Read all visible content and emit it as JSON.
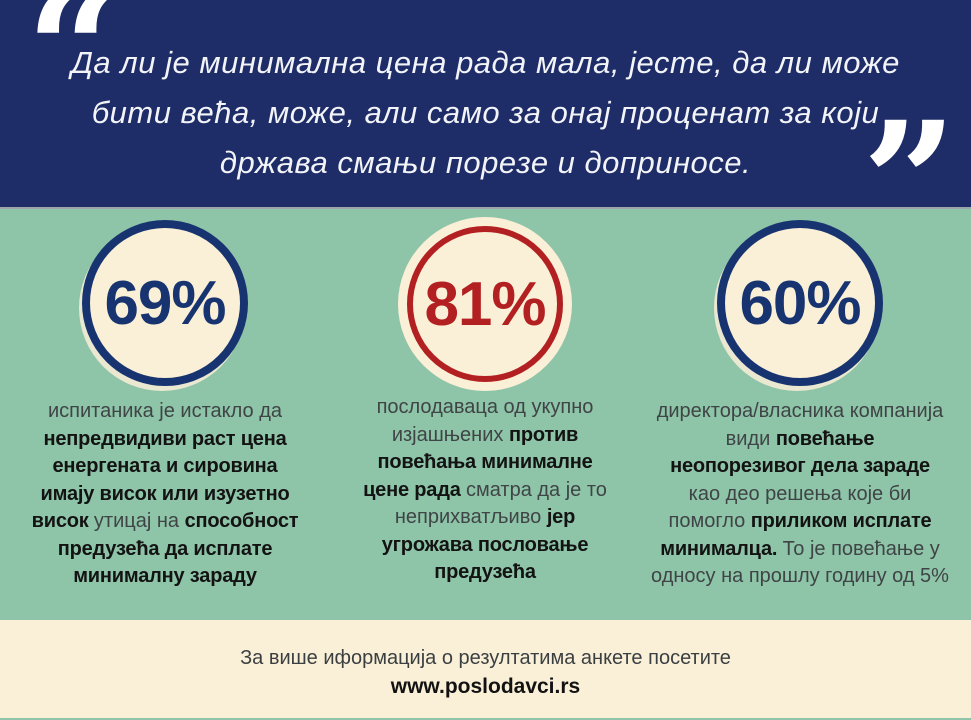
{
  "quote": {
    "text": "Да ли је минимална цена рада мала, јесте, да ли може\nбити већа, може, али само за онај проценат за који\nдржава смањи порезе и доприносе.",
    "open_mark": "“",
    "close_mark": "”"
  },
  "stats": [
    {
      "value": "69%",
      "accent": "#183470",
      "lines": [
        [
          {
            "t": "испитаника је истакло да",
            "b": 0
          }
        ],
        [
          {
            "t": "непредвидиви раст цена",
            "b": 1
          }
        ],
        [
          {
            "t": "енергената и сировина",
            "b": 1
          }
        ],
        [
          {
            "t": "имају висок или изузетно",
            "b": 1
          }
        ],
        [
          {
            "t": "висок ",
            "b": 1
          },
          {
            "t": "утицај на ",
            "b": 0
          },
          {
            "t": "способност",
            "b": 1
          }
        ],
        [
          {
            "t": "предузећа да исплате",
            "b": 1
          }
        ],
        [
          {
            "t": "минималну зараду",
            "b": 1
          }
        ]
      ]
    },
    {
      "value": "81%",
      "accent": "#b22021",
      "lines": [
        [
          {
            "t": "послодаваца од укупно",
            "b": 0
          }
        ],
        [
          {
            "t": "изјашњених ",
            "b": 0
          },
          {
            "t": "против",
            "b": 1
          }
        ],
        [
          {
            "t": "повећања минималне",
            "b": 1
          }
        ],
        [
          {
            "t": "цене рада ",
            "b": 1
          },
          {
            "t": "сматра да је то",
            "b": 0
          }
        ],
        [
          {
            "t": "неприхватљиво ",
            "b": 0
          },
          {
            "t": "јер",
            "b": 1
          }
        ],
        [
          {
            "t": "угрожава пословање",
            "b": 1
          }
        ],
        [
          {
            "t": "предузећа",
            "b": 1
          }
        ]
      ]
    },
    {
      "value": "60%",
      "accent": "#183470",
      "lines": [
        [
          {
            "t": "директора/власника компанија",
            "b": 0
          }
        ],
        [
          {
            "t": "види ",
            "b": 0
          },
          {
            "t": "повећање",
            "b": 1
          }
        ],
        [
          {
            "t": "неопорезивог дела зараде",
            "b": 1
          }
        ],
        [
          {
            "t": "као део решења које би",
            "b": 0
          }
        ],
        [
          {
            "t": "помогло ",
            "b": 0
          },
          {
            "t": "приликом исплате",
            "b": 1
          }
        ],
        [
          {
            "t": "минималца. ",
            "b": 1
          },
          {
            "t": "То је повећање у",
            "b": 0
          }
        ],
        [
          {
            "t": "односу на прошлу годину од 5%",
            "b": 0
          }
        ]
      ]
    }
  ],
  "footer": {
    "note": "За више иформација о резултатима анкете посетите",
    "url": "www.poslodavci.rs"
  },
  "colors": {
    "navy_bg": "#1e2c67",
    "green_bg": "#8ec4a8",
    "cream": "#faefd7",
    "navy_accent": "#183470",
    "red_accent": "#b22021",
    "divider_gray": "#9ba3ab"
  }
}
